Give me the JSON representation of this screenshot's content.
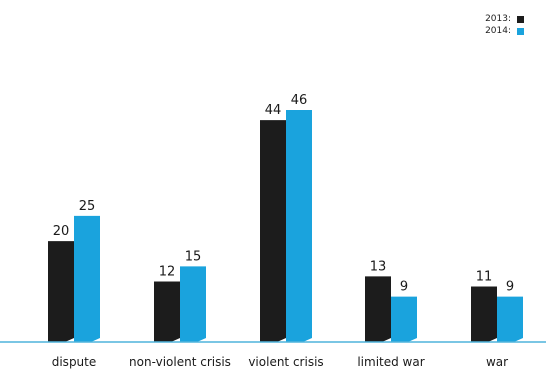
{
  "chart_data": {
    "type": "bar",
    "categories": [
      "dispute",
      "non-violent crisis",
      "violent crisis",
      "limited war",
      "war"
    ],
    "series": [
      {
        "name": "2013:",
        "values": [
          20,
          12,
          44,
          13,
          11
        ],
        "color": "#1c1c1c"
      },
      {
        "name": "2014:",
        "values": [
          25,
          15,
          46,
          9,
          9
        ],
        "color": "#1aa3dd"
      }
    ],
    "ylim": [
      0,
      46
    ],
    "grid": false,
    "legend_position": "top-right",
    "baseline_color": "#4fb3dc"
  }
}
